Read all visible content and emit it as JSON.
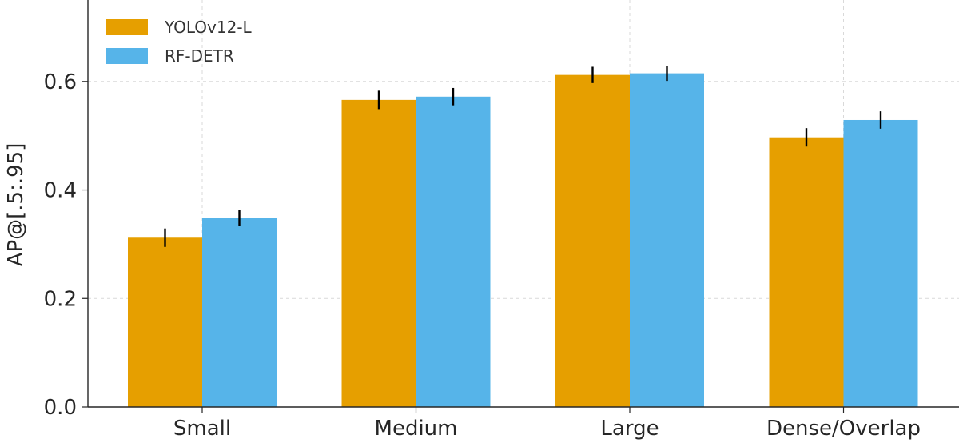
{
  "chart_data": {
    "type": "bar",
    "categories": [
      "Small",
      "Medium",
      "Large",
      "Dense/Overlap"
    ],
    "series": [
      {
        "name": "YOLOv12-L",
        "color": "#E69F00",
        "values": [
          0.312,
          0.566,
          0.612,
          0.497
        ],
        "errors": [
          0.017,
          0.017,
          0.015,
          0.017
        ]
      },
      {
        "name": "RF-DETR",
        "color": "#56B4E9",
        "values": [
          0.348,
          0.572,
          0.615,
          0.529
        ],
        "errors": [
          0.015,
          0.016,
          0.014,
          0.016
        ]
      }
    ],
    "xlabel": "",
    "ylabel": "AP@[.5:.95]",
    "ylim": [
      0,
      0.75
    ],
    "yticks": [
      "0.0",
      "0.2",
      "0.4",
      "0.6"
    ],
    "grid": true,
    "legend_position": "top-left"
  }
}
